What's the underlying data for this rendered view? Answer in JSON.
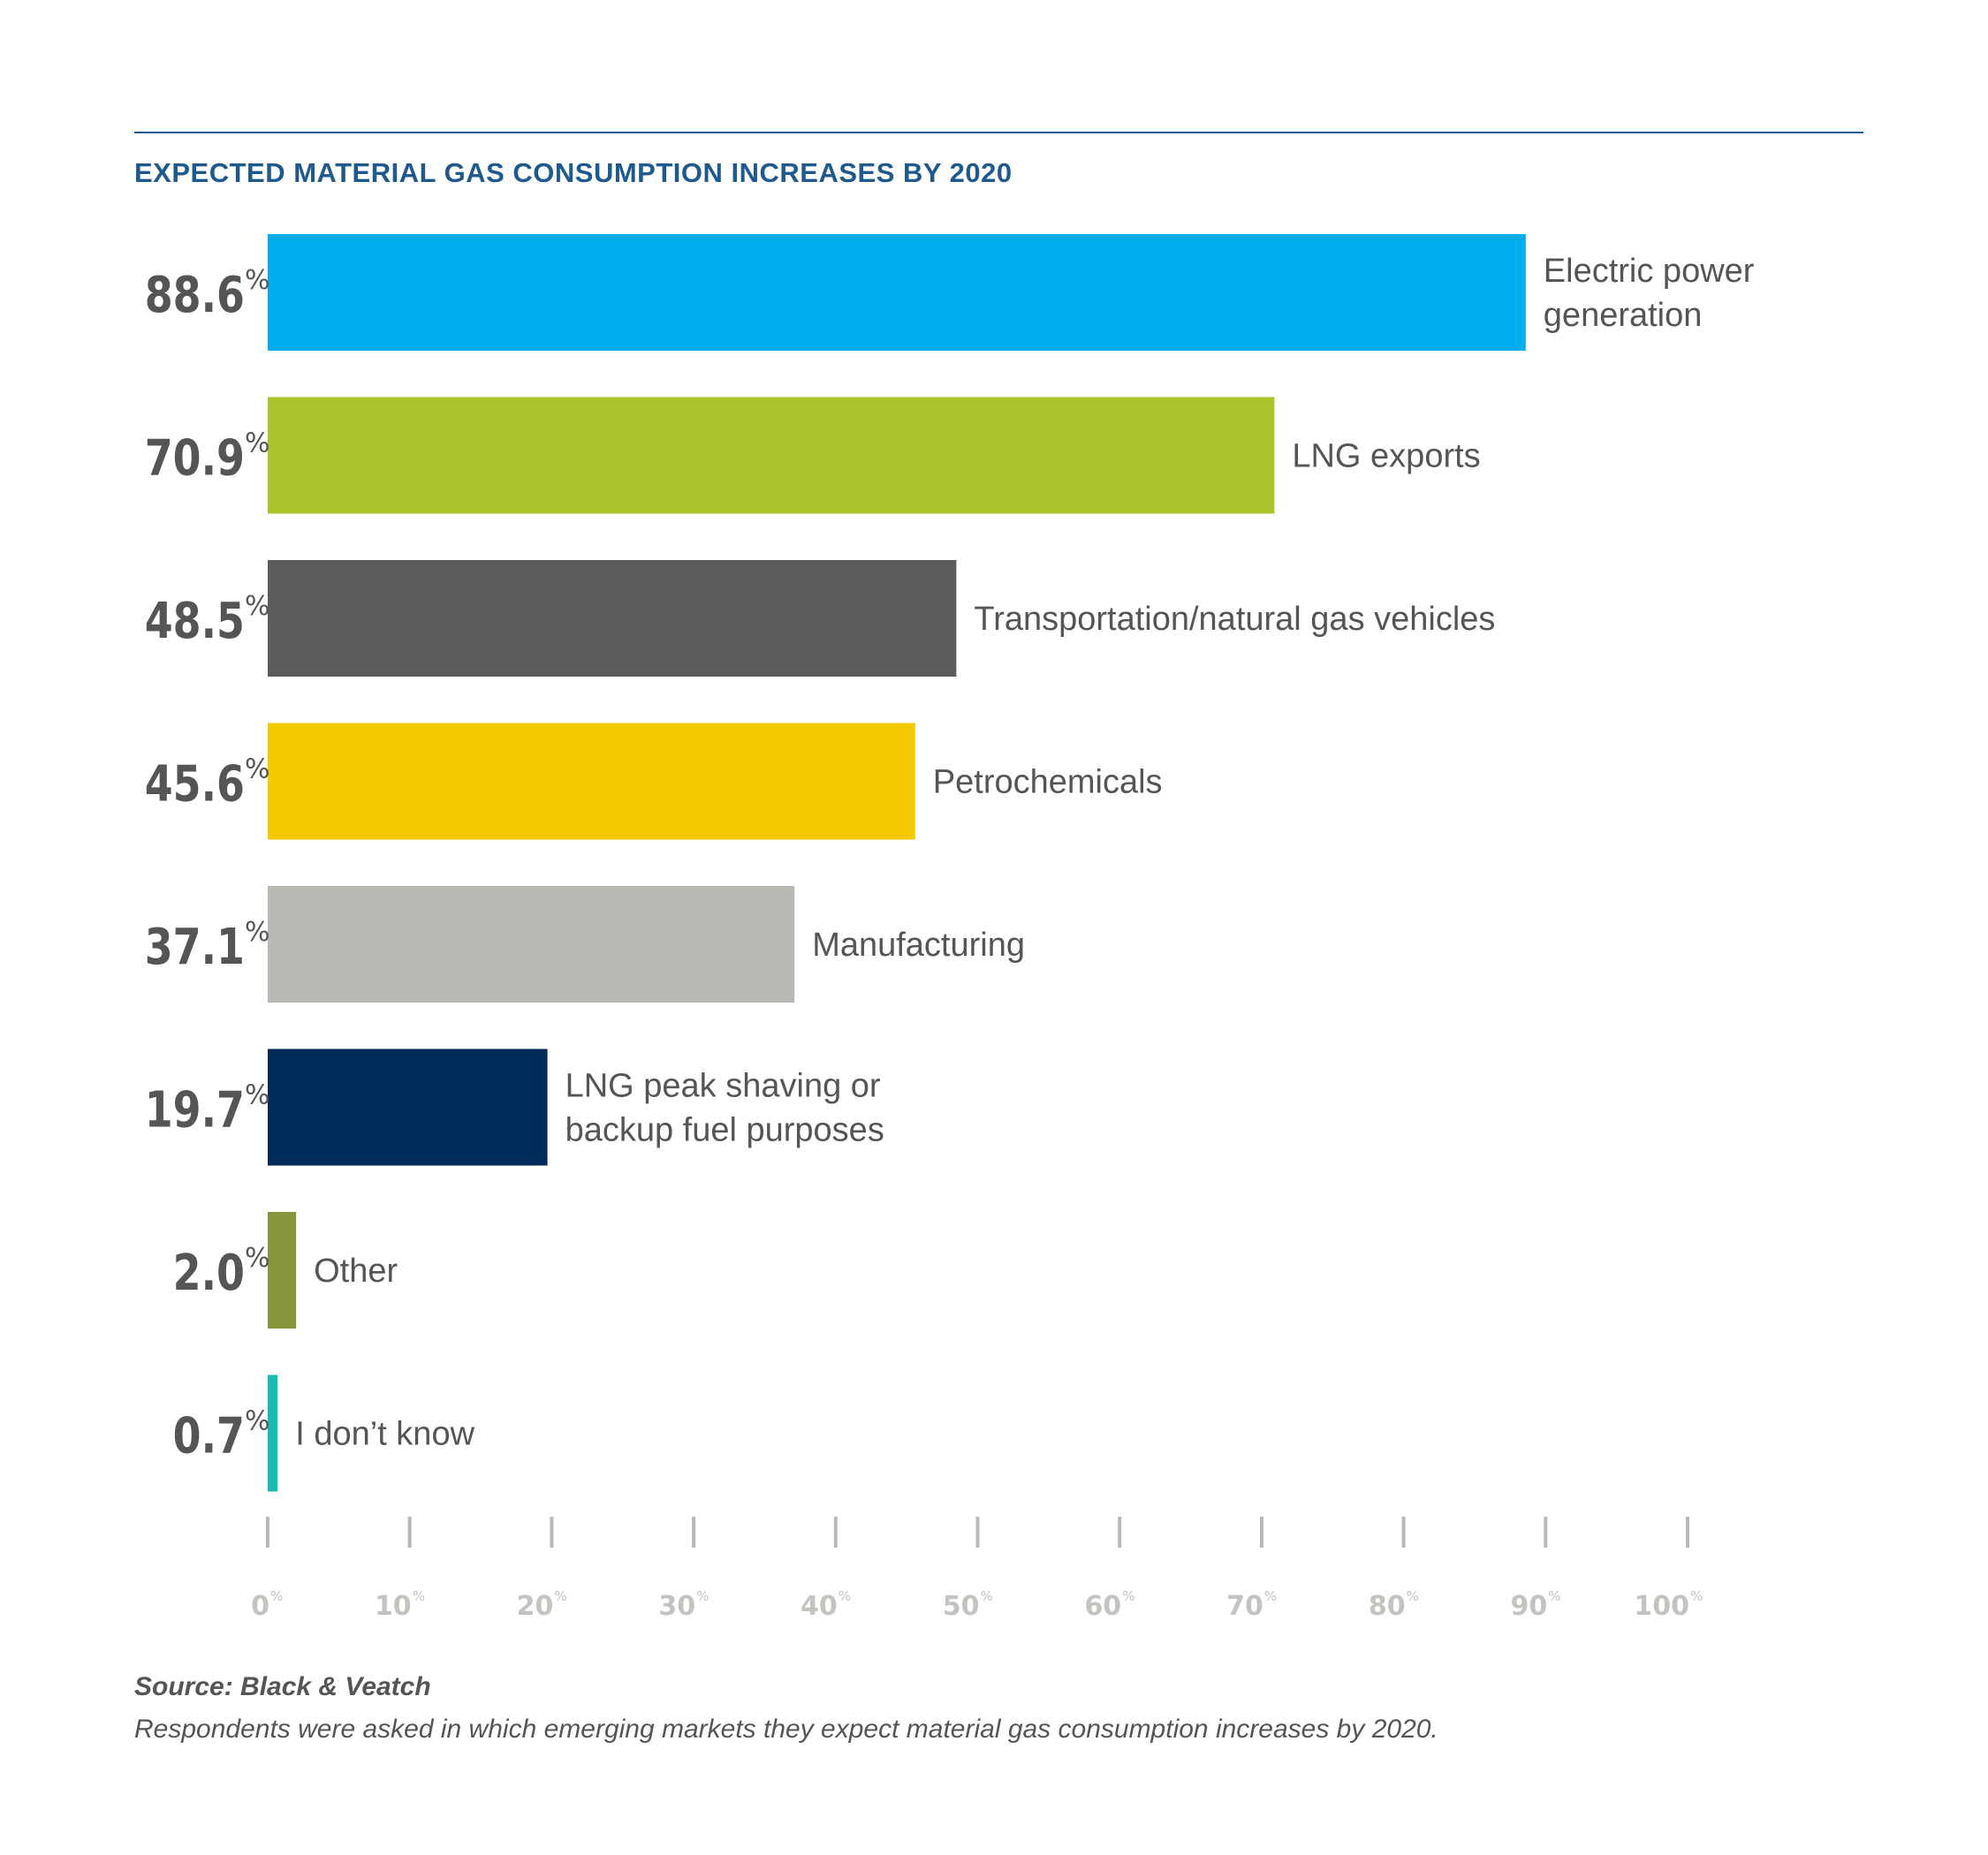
{
  "chart_data": {
    "type": "bar",
    "orientation": "horizontal",
    "title": "EXPECTED MATERIAL GAS CONSUMPTION INCREASES BY 2020",
    "categories": [
      "Electric power generation",
      "LNG exports",
      "Transportation/natural gas vehicles",
      "Petrochemicals",
      "Manufacturing",
      "LNG peak shaving or backup fuel purposes",
      "Other",
      "I don’t know"
    ],
    "category_lines": [
      [
        "Electric power",
        "generation"
      ],
      [
        "LNG exports"
      ],
      [
        "Transportation/natural gas vehicles"
      ],
      [
        "Petrochemicals"
      ],
      [
        "Manufacturing"
      ],
      [
        "LNG peak shaving or",
        "backup fuel purposes"
      ],
      [
        "Other"
      ],
      [
        "I don’t know"
      ]
    ],
    "values": [
      88.6,
      70.9,
      48.5,
      45.6,
      37.1,
      19.7,
      2.0,
      0.7
    ],
    "value_labels": [
      "88.6",
      "70.9",
      "48.5",
      "45.6",
      "37.1",
      "19.7",
      "2.0",
      "0.7"
    ],
    "value_unit": "%",
    "colors": [
      "#00adee",
      "#acc42c",
      "#5c5d5b",
      "#f3ca00",
      "#b9b8b3",
      "#002a5a",
      "#87953c",
      "#17bcb0"
    ],
    "xlim": [
      0,
      100
    ],
    "xticks": [
      0,
      10,
      20,
      30,
      40,
      50,
      60,
      70,
      80,
      90,
      100
    ],
    "xtick_labels": [
      "0",
      "10",
      "20",
      "30",
      "40",
      "50",
      "60",
      "70",
      "80",
      "90",
      "100"
    ],
    "xtick_unit": "%",
    "grid": false
  },
  "source": "Source: Black & Veatch",
  "note": "Respondents were asked in which emerging markets they expect material gas consumption increases by 2020."
}
